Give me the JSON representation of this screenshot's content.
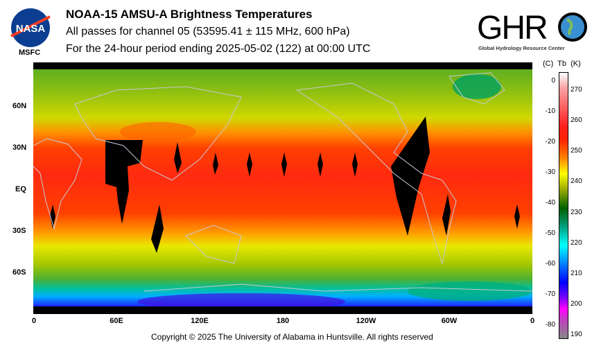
{
  "header": {
    "title": "NOAA-15 AMSU-A Brightness Temperatures",
    "subtitle": "All passes for channel 05 (53595.41 ± 115 MHz, 600 hPa)",
    "period": "For the 24-hour period ending 2025-05-02 (122) at 00:00 UTC"
  },
  "logos": {
    "nasa": "NASA",
    "nasa_sub": "MSFC",
    "ghrc": "GHRC",
    "ghrc_sub": "Global Hydrology Resource Center"
  },
  "map": {
    "lat_labels": [
      "60N",
      "30N",
      "EQ",
      "30S",
      "60S"
    ],
    "lon_labels": [
      "0",
      "60E",
      "120E",
      "180",
      "120W",
      "60W",
      "0"
    ]
  },
  "colorbar": {
    "header": "(C)  Tb  (K)",
    "celsius": [
      "0",
      "-10",
      "-20",
      "-30",
      "-40",
      "-50",
      "-60",
      "-70",
      "-80"
    ],
    "kelvin": [
      "270",
      "260",
      "250",
      "240",
      "230",
      "220",
      "210",
      "200",
      "190"
    ],
    "range_k": [
      189,
      276
    ]
  },
  "footer": {
    "copyright": "Copyright © 2025 The University of Alabama in Huntsville.  All rights reserved"
  }
}
